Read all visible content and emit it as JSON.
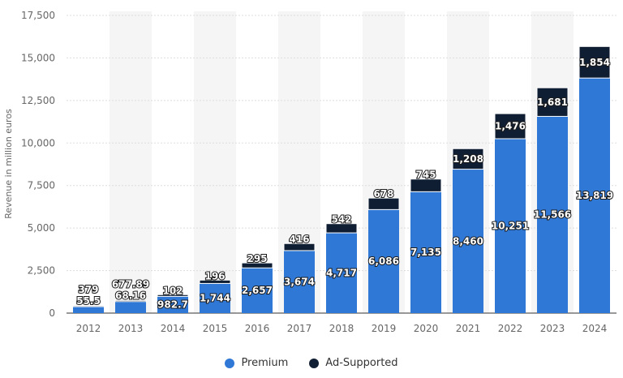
{
  "chart_data": {
    "type": "bar",
    "stacked": true,
    "categories": [
      "2012",
      "2013",
      "2014",
      "2015",
      "2016",
      "2017",
      "2018",
      "2019",
      "2020",
      "2021",
      "2022",
      "2023",
      "2024"
    ],
    "series": [
      {
        "name": "Premium",
        "color": "#2f78d6",
        "values": [
          379,
          677.89,
          982.7,
          1744,
          2657,
          3674,
          4717,
          6086,
          7135,
          8460,
          10251,
          11566,
          13819
        ],
        "labels": [
          "379",
          "677.89",
          "982.7",
          "1,744",
          "2,657",
          "3,674",
          "4,717",
          "6,086",
          "7,135",
          "8,460",
          "10,251",
          "11,566",
          "13,819"
        ]
      },
      {
        "name": "Ad-Supported",
        "color": "#0f1e33",
        "values": [
          55.5,
          68.16,
          102,
          196,
          295,
          416,
          542,
          678,
          745,
          1208,
          1476,
          1681,
          1854
        ],
        "labels": [
          "55.5",
          "68.16",
          "102",
          "196",
          "295",
          "416",
          "542",
          "678",
          "745",
          "1,208",
          "1,476",
          "1,681",
          "1,854"
        ]
      }
    ],
    "ylabel": "Revenue in million euros",
    "xlabel": "",
    "ylim": [
      0,
      17500
    ],
    "yticks": [
      0,
      2500,
      5000,
      7500,
      10000,
      12500,
      15000,
      17500
    ],
    "ytick_labels": [
      "0",
      "2,500",
      "5,000",
      "7,500",
      "10,000",
      "12,500",
      "15,000",
      "17,500"
    ],
    "grid": true,
    "legend": "bottom-center"
  }
}
